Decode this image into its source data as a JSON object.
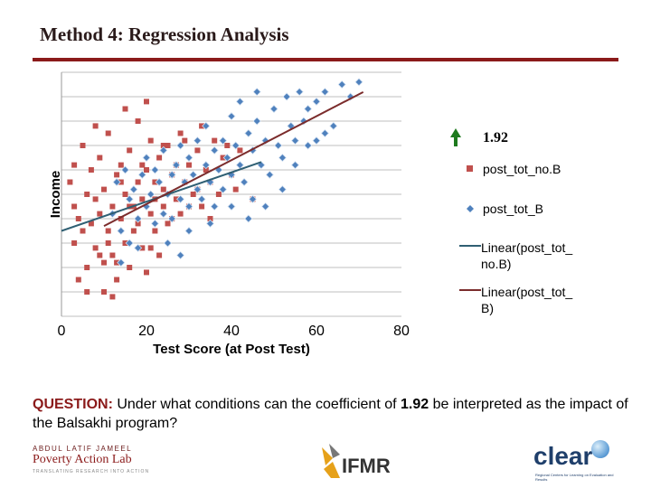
{
  "header": {
    "title": "Method 4: Regression Analysis"
  },
  "question": {
    "label": "QUESTION:",
    "text_before": " Under what conditions can the coefficient of ",
    "value": "1.92",
    "text_after": " be interpreted as the impact of the Balsakhi program?"
  },
  "logos": {
    "jpal_line1": "ABDUL LATIF JAMEEL",
    "jpal_line2": "Poverty Action Lab",
    "jpal_line3": "TRANSLATING RESEARCH INTO ACTION",
    "ifmr": "IFMR",
    "clear": "clear",
    "clear_sub": "Regional Centers for Learning on Evaluation and Results"
  },
  "chart_data": {
    "type": "scatter",
    "title": "",
    "xlabel": "Test Score (at Post Test)",
    "ylabel": "Income",
    "xlim": [
      0,
      80
    ],
    "ylim": [
      0,
      100
    ],
    "x_ticks": [
      "0",
      "20",
      "40",
      "60",
      "80"
    ],
    "grid": true,
    "legend_position": "right",
    "annotation": "1.92",
    "colors": {
      "nob": "#c0504d",
      "b": "#4f81bd",
      "trend_nob": "#2f5f73",
      "trend_b": "#7b2c2c",
      "arrow": "#1e7a1e",
      "grid": "#bfbfbf"
    },
    "legend": [
      "post_tot_no.B",
      "post_tot_B",
      "Linear(post_tot_no.B)",
      "Linear(post_tot_B)"
    ],
    "series": [
      {
        "name": "post_tot_no.B",
        "marker": "square",
        "points": [
          [
            2,
            55
          ],
          [
            3,
            45
          ],
          [
            3,
            30
          ],
          [
            4,
            40
          ],
          [
            5,
            70
          ],
          [
            5,
            35
          ],
          [
            6,
            50
          ],
          [
            6,
            20
          ],
          [
            7,
            60
          ],
          [
            7,
            38
          ],
          [
            8,
            28
          ],
          [
            8,
            48
          ],
          [
            9,
            65
          ],
          [
            9,
            42
          ],
          [
            10,
            22
          ],
          [
            10,
            52
          ],
          [
            11,
            35
          ],
          [
            11,
            75
          ],
          [
            12,
            45
          ],
          [
            12,
            25
          ],
          [
            13,
            58
          ],
          [
            13,
            15
          ],
          [
            14,
            40
          ],
          [
            14,
            62
          ],
          [
            15,
            30
          ],
          [
            15,
            50
          ],
          [
            16,
            20
          ],
          [
            16,
            68
          ],
          [
            17,
            45
          ],
          [
            17,
            35
          ],
          [
            18,
            55
          ],
          [
            18,
            80
          ],
          [
            19,
            28
          ],
          [
            19,
            48
          ],
          [
            20,
            60
          ],
          [
            20,
            18
          ],
          [
            21,
            42
          ],
          [
            21,
            72
          ],
          [
            22,
            35
          ],
          [
            22,
            55
          ],
          [
            23,
            25
          ],
          [
            23,
            65
          ],
          [
            24,
            45
          ],
          [
            24,
            52
          ],
          [
            25,
            38
          ],
          [
            25,
            70
          ],
          [
            26,
            58
          ],
          [
            27,
            48
          ],
          [
            28,
            42
          ],
          [
            28,
            75
          ],
          [
            29,
            55
          ],
          [
            30,
            62
          ],
          [
            31,
            50
          ],
          [
            32,
            68
          ],
          [
            33,
            45
          ],
          [
            34,
            60
          ],
          [
            35,
            55
          ],
          [
            36,
            72
          ],
          [
            38,
            65
          ],
          [
            40,
            58
          ],
          [
            42,
            68
          ],
          [
            45,
            48
          ],
          [
            4,
            15
          ],
          [
            6,
            10
          ],
          [
            10,
            10
          ],
          [
            12,
            8
          ],
          [
            3,
            62
          ],
          [
            8,
            78
          ],
          [
            15,
            85
          ],
          [
            20,
            88
          ],
          [
            9,
            25
          ],
          [
            11,
            30
          ],
          [
            13,
            22
          ],
          [
            14,
            55
          ],
          [
            16,
            45
          ],
          [
            18,
            38
          ],
          [
            19,
            62
          ],
          [
            21,
            28
          ],
          [
            22,
            48
          ],
          [
            24,
            70
          ],
          [
            26,
            40
          ],
          [
            27,
            62
          ],
          [
            29,
            72
          ],
          [
            30,
            45
          ],
          [
            32,
            52
          ],
          [
            33,
            78
          ],
          [
            35,
            40
          ],
          [
            37,
            50
          ],
          [
            39,
            70
          ],
          [
            41,
            52
          ]
        ]
      },
      {
        "name": "post_tot_B",
        "marker": "diamond",
        "points": [
          [
            12,
            42
          ],
          [
            13,
            55
          ],
          [
            14,
            35
          ],
          [
            15,
            60
          ],
          [
            16,
            48
          ],
          [
            17,
            52
          ],
          [
            18,
            40
          ],
          [
            19,
            58
          ],
          [
            20,
            45
          ],
          [
            20,
            65
          ],
          [
            21,
            50
          ],
          [
            22,
            38
          ],
          [
            22,
            60
          ],
          [
            23,
            55
          ],
          [
            24,
            42
          ],
          [
            24,
            68
          ],
          [
            25,
            50
          ],
          [
            26,
            58
          ],
          [
            26,
            40
          ],
          [
            27,
            62
          ],
          [
            28,
            48
          ],
          [
            28,
            70
          ],
          [
            29,
            55
          ],
          [
            30,
            45
          ],
          [
            30,
            65
          ],
          [
            31,
            58
          ],
          [
            32,
            52
          ],
          [
            32,
            72
          ],
          [
            33,
            48
          ],
          [
            34,
            62
          ],
          [
            34,
            78
          ],
          [
            35,
            55
          ],
          [
            36,
            68
          ],
          [
            36,
            45
          ],
          [
            37,
            60
          ],
          [
            38,
            72
          ],
          [
            38,
            52
          ],
          [
            39,
            65
          ],
          [
            40,
            58
          ],
          [
            40,
            82
          ],
          [
            41,
            70
          ],
          [
            42,
            62
          ],
          [
            42,
            88
          ],
          [
            43,
            55
          ],
          [
            44,
            75
          ],
          [
            45,
            68
          ],
          [
            45,
            48
          ],
          [
            46,
            80
          ],
          [
            47,
            62
          ],
          [
            48,
            72
          ],
          [
            49,
            58
          ],
          [
            50,
            85
          ],
          [
            51,
            70
          ],
          [
            52,
            65
          ],
          [
            53,
            90
          ],
          [
            54,
            78
          ],
          [
            55,
            72
          ],
          [
            56,
            92
          ],
          [
            57,
            80
          ],
          [
            58,
            85
          ],
          [
            60,
            88
          ],
          [
            62,
            92
          ],
          [
            64,
            78
          ],
          [
            66,
            95
          ],
          [
            68,
            90
          ],
          [
            70,
            96
          ],
          [
            60,
            72
          ],
          [
            52,
            52
          ],
          [
            48,
            45
          ],
          [
            44,
            40
          ],
          [
            25,
            30
          ],
          [
            30,
            35
          ],
          [
            35,
            38
          ],
          [
            40,
            45
          ],
          [
            18,
            28
          ],
          [
            16,
            30
          ],
          [
            14,
            22
          ],
          [
            28,
            25
          ],
          [
            46,
            92
          ],
          [
            55,
            62
          ],
          [
            58,
            70
          ],
          [
            62,
            75
          ]
        ]
      }
    ],
    "trendlines": [
      {
        "name": "Linear(post_tot_no.B)",
        "slope": 0.6,
        "intercept": 35,
        "x_range": [
          0,
          47
        ]
      },
      {
        "name": "Linear(post_tot_B)",
        "slope": 0.9,
        "intercept": 28,
        "x_range": [
          10,
          71
        ]
      }
    ]
  }
}
